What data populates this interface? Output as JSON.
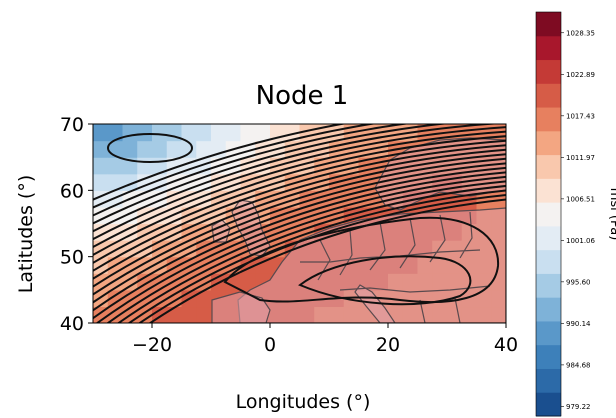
{
  "chart_data": {
    "type": "heatmap",
    "title": "Node 1",
    "xlabel": "Longitudes (°)",
    "ylabel": "Latitudes (°)",
    "xlim": [
      -30,
      40
    ],
    "ylim": [
      40,
      70
    ],
    "x_ticks": [
      -20,
      0,
      20,
      40
    ],
    "y_ticks": [
      40,
      50,
      60,
      70
    ],
    "colorbar": {
      "label": "msl (Pa)",
      "range": [
        977.96,
        1031.08
      ],
      "ticks": [
        979.22,
        984.68,
        990.14,
        995.6,
        1001.06,
        1006.51,
        1011.97,
        1017.43,
        1022.89,
        1028.35
      ],
      "tick_labels": [
        "979.22",
        "984.68",
        "990.14",
        "995.60",
        "1001.06",
        "1006.51",
        "1011.97",
        "1017.43",
        "1022.89",
        "1028.35"
      ],
      "colors": [
        "#1a4f8f",
        "#2c6aa8",
        "#3d80ba",
        "#5a98c9",
        "#7eb2d8",
        "#a5cbe5",
        "#c9dff0",
        "#e3ecf4",
        "#f4f2f1",
        "#fbe2d3",
        "#f9c8ad",
        "#f3a682",
        "#e7805f",
        "#d65c47",
        "#c43a36",
        "#a8172c",
        "#7e0b22"
      ]
    },
    "pressure_field": {
      "lons": [
        -30,
        -20,
        -10,
        0,
        10,
        20,
        30,
        40
      ],
      "lats": [
        70,
        65,
        60,
        55,
        50,
        45,
        40
      ],
      "values_hPa": [
        [
          987,
          993,
          999,
          1006,
          1011,
          1014,
          1016,
          1016
        ],
        [
          992,
          996,
          1002,
          1008,
          1013,
          1016,
          1018,
          1017
        ],
        [
          999,
          1003,
          1008,
          1013,
          1016,
          1018,
          1019,
          1018
        ],
        [
          1005,
          1009,
          1013,
          1016,
          1019,
          1020,
          1019,
          1018
        ],
        [
          1010,
          1014,
          1017,
          1019,
          1020,
          1020,
          1018,
          1017
        ],
        [
          1014,
          1017,
          1019,
          1020,
          1019,
          1018,
          1017,
          1016
        ],
        [
          1016,
          1019,
          1020,
          1019,
          1018,
          1017,
          1016,
          1016
        ]
      ]
    }
  }
}
